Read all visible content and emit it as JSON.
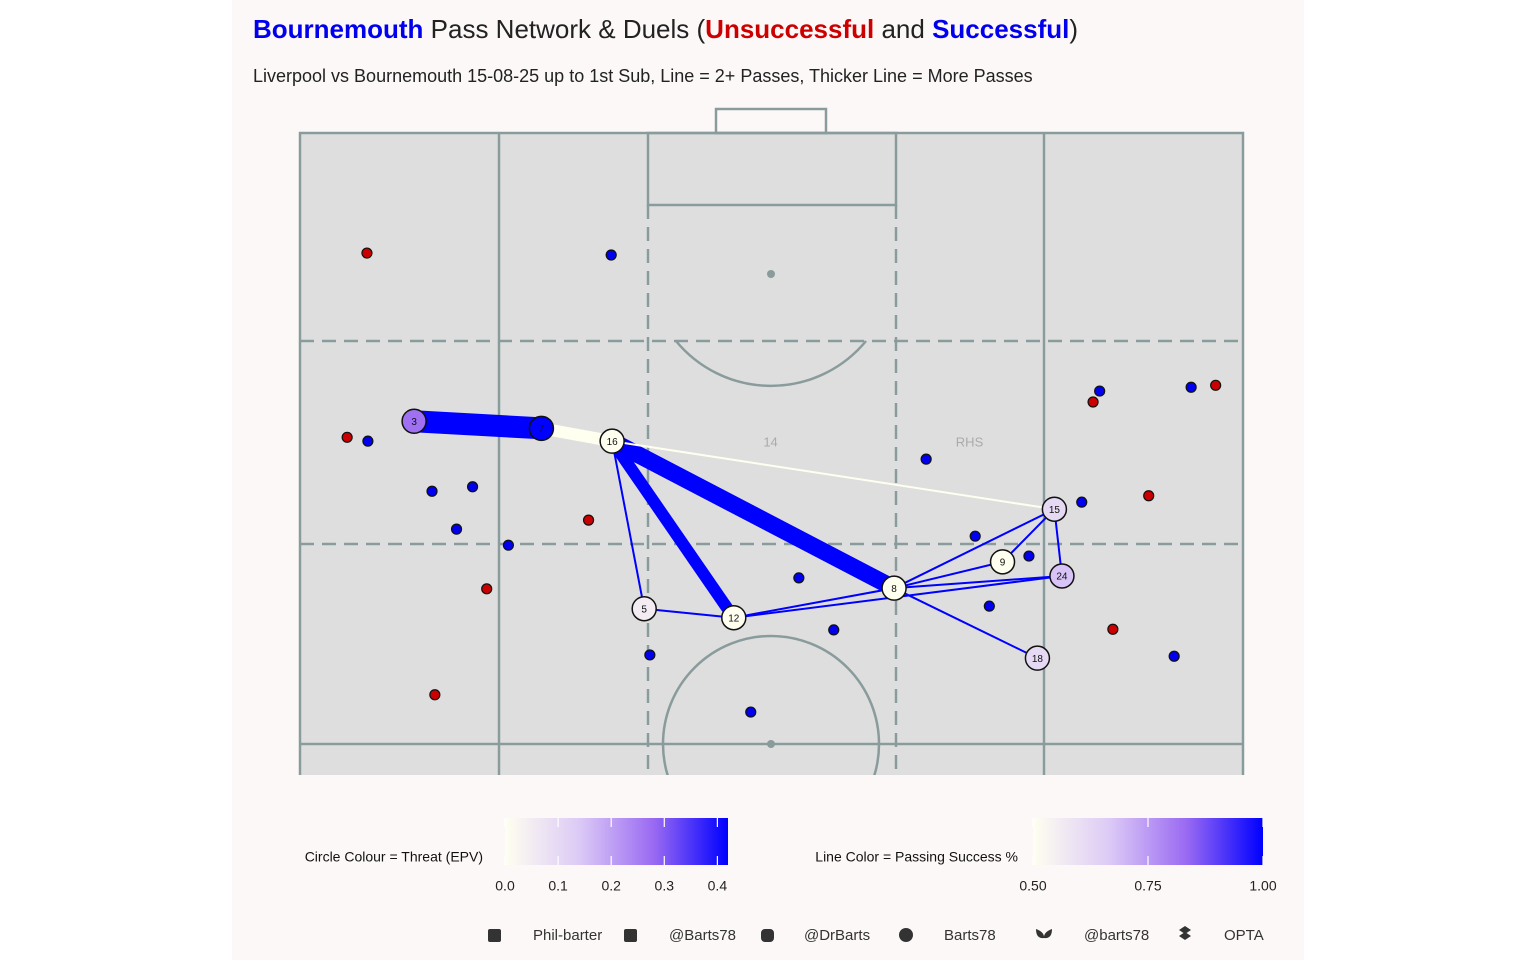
{
  "chart_data": {
    "type": "pass-network",
    "title_parts": [
      "Bournemouth",
      " Pass Network & Duels (",
      " and ",
      ")"
    ],
    "team_color": "#0000ee",
    "subtitle": "Liverpool vs Bournemouth 15-08-25 up to 1st Sub, Line = 2+ Passes, Thicker Line = More Passes",
    "xlim": [
      0,
      100
    ],
    "ylim": [
      0,
      100
    ],
    "annotations": [
      {
        "text": "14",
        "x": 49.9,
        "y": 51.7
      },
      {
        "text": "RHS",
        "x": 71.0,
        "y": 51.7
      }
    ],
    "series": [
      {
        "name": "Unsuccessful",
        "color": "#cc0000",
        "x": [
          7.1,
          5.0,
          30.6,
          19.8,
          14.3,
          84.1,
          97.1,
          90.0,
          86.2
        ],
        "y": [
          81.3,
          52.6,
          39.7,
          29.0,
          12.5,
          58.1,
          60.7,
          43.5,
          22.7
        ]
      },
      {
        "name": "Successful",
        "color": "#0000ee",
        "x": [
          33.0,
          7.2,
          14.0,
          18.3,
          16.6,
          22.1,
          37.1,
          47.8,
          52.9,
          56.6,
          66.4,
          71.6,
          77.3,
          73.1,
          82.9,
          84.8,
          94.5,
          92.7
        ],
        "y": [
          81.0,
          52.0,
          44.2,
          44.9,
          38.3,
          35.8,
          18.7,
          9.8,
          30.7,
          22.6,
          49.2,
          37.2,
          34.1,
          26.3,
          42.5,
          59.8,
          60.4,
          18.5
        ]
      }
    ],
    "nodes": [
      {
        "label": 3,
        "x": 12.1,
        "y": 55.1,
        "epv": 0.27
      },
      {
        "label": 7,
        "x": 25.6,
        "y": 54.0,
        "epv": 0.42
      },
      {
        "label": 16,
        "x": 33.1,
        "y": 52.0,
        "epv": 0.0
      },
      {
        "label": 5,
        "x": 36.5,
        "y": 25.9,
        "epv": 0.05
      },
      {
        "label": 12,
        "x": 46.0,
        "y": 24.5,
        "epv": 0.0
      },
      {
        "label": 8,
        "x": 63.0,
        "y": 29.1,
        "epv": 0.0
      },
      {
        "label": 9,
        "x": 74.5,
        "y": 33.2,
        "epv": 0.0
      },
      {
        "label": 15,
        "x": 80.0,
        "y": 41.4,
        "epv": 0.1
      },
      {
        "label": 24,
        "x": 80.8,
        "y": 31.0,
        "epv": 0.15
      },
      {
        "label": 18,
        "x": 78.2,
        "y": 18.2,
        "epv": 0.1
      }
    ],
    "edges": [
      {
        "from": 3,
        "to": 7,
        "passes": 10,
        "success": 1.0
      },
      {
        "from": 7,
        "to": 16,
        "passes": 6,
        "success": 0.5
      },
      {
        "from": 16,
        "to": 8,
        "passes": 8,
        "success": 1.0
      },
      {
        "from": 16,
        "to": 12,
        "passes": 6,
        "success": 1.0
      },
      {
        "from": 16,
        "to": 15,
        "passes": 2,
        "success": 0.5
      },
      {
        "from": 16,
        "to": 5,
        "passes": 2,
        "success": 1.0
      },
      {
        "from": 5,
        "to": 12,
        "passes": 2,
        "success": 1.0
      },
      {
        "from": 12,
        "to": 8,
        "passes": 2,
        "success": 1.0
      },
      {
        "from": 12,
        "to": 24,
        "passes": 2,
        "success": 1.0
      },
      {
        "from": 8,
        "to": 9,
        "passes": 2,
        "success": 1.0
      },
      {
        "from": 8,
        "to": 15,
        "passes": 2,
        "success": 1.0
      },
      {
        "from": 8,
        "to": 24,
        "passes": 2,
        "success": 1.0
      },
      {
        "from": 8,
        "to": 18,
        "passes": 2,
        "success": 1.0
      },
      {
        "from": 9,
        "to": 15,
        "passes": 2,
        "success": 1.0
      },
      {
        "from": 15,
        "to": 24,
        "passes": 2,
        "success": 1.0
      }
    ],
    "node_color_scale": {
      "label": "Circle Colour = Threat (EPV)",
      "lim": [
        0,
        0.42
      ],
      "colors": [
        "#fffff0",
        "#dccaf6",
        "#9a6af2",
        "#0000ff"
      ],
      "ticks": [
        {
          "value": 0,
          "label": "0.0"
        },
        0.1,
        0.2,
        0.3,
        0.4
      ]
    },
    "edge_color_scale": {
      "label": "Line Color = Passing Success %",
      "lim": [
        0.5,
        1.0
      ],
      "colors": [
        "#fffff0",
        "#dccaf6",
        "#9a6af2",
        "#0000ff"
      ],
      "ticks": [
        {
          "value": 0.5,
          "label": "0.50"
        },
        0.75,
        {
          "value": 1,
          "label": "1.00"
        }
      ]
    },
    "credits": [
      "Phil-barter",
      "@Barts78",
      "@DrBarts",
      "Barts78",
      "@barts78",
      "OPTA"
    ]
  }
}
